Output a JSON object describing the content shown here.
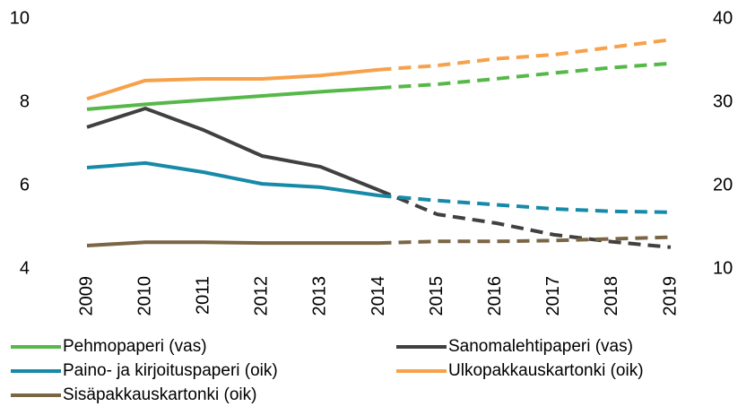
{
  "chart_data": {
    "type": "line",
    "categories": [
      "2009",
      "2010",
      "2011",
      "2012",
      "2013",
      "2014",
      "2015",
      "2016",
      "2017",
      "2018",
      "2019"
    ],
    "dashed_from": "2014",
    "ylim": [
      4,
      10
    ],
    "yticks": [
      4,
      6,
      8,
      10
    ],
    "y2lim": [
      10,
      40
    ],
    "y2ticks": [
      10,
      20,
      30,
      40
    ],
    "series": [
      {
        "name": "Pehmopaperi (vas)",
        "color": "#56b848",
        "values": [
          7.83,
          7.95,
          8.05,
          8.15,
          8.25,
          8.34,
          8.43,
          8.56,
          8.7,
          8.83,
          8.93
        ]
      },
      {
        "name": "Sanomalehtipaperi (vas)",
        "color": "#404040",
        "values": [
          7.4,
          7.85,
          7.33,
          6.71,
          6.45,
          5.89,
          5.31,
          5.1,
          4.82,
          4.65,
          4.52
        ]
      },
      {
        "name": "Paino- ja kirjoituspaperi (oik)",
        "color": "#168aa8",
        "axis": "y2",
        "values": [
          22.15,
          22.7,
          21.6,
          20.2,
          19.8,
          18.8,
          18.2,
          17.7,
          17.2,
          16.9,
          16.8
        ]
      },
      {
        "name": "Ulkopakkauskartonki (oik)",
        "color": "#f7a14a",
        "axis": "y2",
        "values": [
          30.4,
          32.6,
          32.8,
          32.8,
          33.2,
          33.9,
          34.4,
          35.2,
          35.7,
          36.6,
          37.5
        ]
      },
      {
        "name": "Sisäpakkauskartonki (oik)",
        "color": "#7a6544",
        "axis": "y2",
        "values": [
          12.8,
          13.2,
          13.2,
          13.1,
          13.1,
          13.1,
          13.3,
          13.3,
          13.4,
          13.6,
          13.8
        ]
      }
    ]
  }
}
